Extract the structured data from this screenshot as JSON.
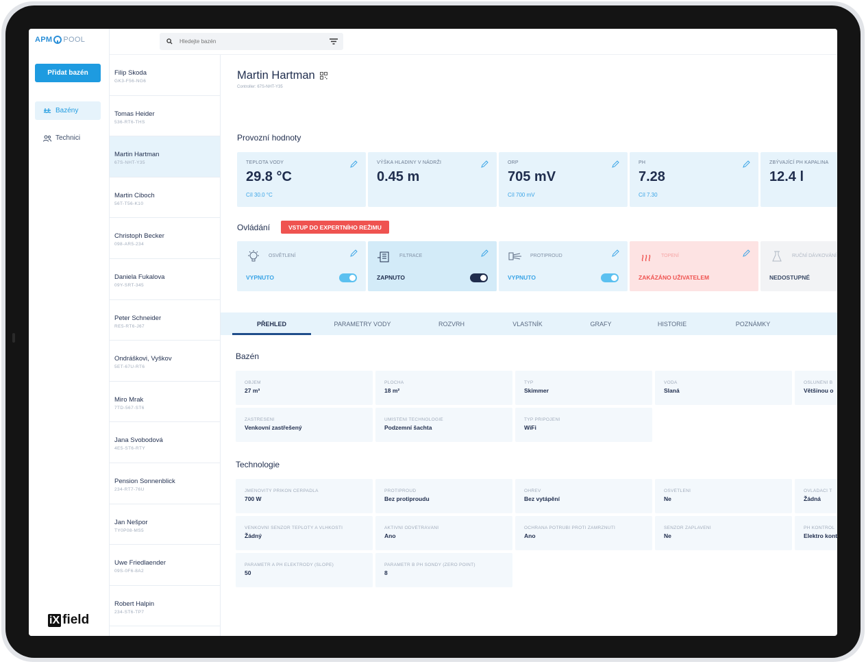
{
  "app": {
    "logo_apm": "APM",
    "logo_pool": "POOL",
    "add_pool_label": "Přidat bazén",
    "nav": [
      {
        "label": "Bazény",
        "icon": "pool-icon"
      },
      {
        "label": "Technici",
        "icon": "people-icon"
      }
    ],
    "vendor_logo_ix": "iX",
    "vendor_logo_rest": "field"
  },
  "search": {
    "placeholder": "Hledejte bazén"
  },
  "pools": [
    {
      "name": "Filip Skoda",
      "code": "GK3-F56-NG6"
    },
    {
      "name": "Tomas Heider",
      "code": "536-RT6-THS"
    },
    {
      "name": "Martin Hartman",
      "code": "67S-NHT-Y35"
    },
    {
      "name": "Martin Ciboch",
      "code": "56T-T56-K10"
    },
    {
      "name": "Christoph Becker",
      "code": "098-AR5-234"
    },
    {
      "name": "Daniela Fukalova",
      "code": "09Y-SRT-345"
    },
    {
      "name": "Peter Schneider",
      "code": "RE5-RT6-J67"
    },
    {
      "name": "Ondráškovi, Vyškov",
      "code": "5ET-67U-RT6"
    },
    {
      "name": "Miro Mrak",
      "code": "7TD-567-ST6"
    },
    {
      "name": "Jana Svobodová",
      "code": "4E5-ST6-RTY"
    },
    {
      "name": "Pension Sonnenblick",
      "code": "234-RT7-76U"
    },
    {
      "name": "Jan Nešpor",
      "code": "TY0P08-MS5"
    },
    {
      "name": "Uwe Friedlaender",
      "code": "09S-0F6-8A2"
    },
    {
      "name": "Robert Halpin",
      "code": "234-ST6-TP7"
    }
  ],
  "detail": {
    "title": "Martin Hartman",
    "controller": "Controller: 67S-NHT-Y35",
    "operating_title": "Provozní hodnoty",
    "controls_title": "Ovládání",
    "expert_button": "VSTUP DO EXPERTNÍHO REŽIMU",
    "values": [
      {
        "label": "TEPLOTA VODY",
        "value": "29.8 °C",
        "target": "Cíl 30.0 °C"
      },
      {
        "label": "VÝŠKA HLADINY V NÁDRŽI",
        "value": "0.45 m",
        "target": ""
      },
      {
        "label": "ORP",
        "value": "705 mV",
        "target": "Cíl 700 mV"
      },
      {
        "label": "PH",
        "value": "7.28",
        "target": "Cíl 7.30"
      },
      {
        "label": "ZBÝVAJÍCÍ PH KAPALINA",
        "value": "12.4 l",
        "target": ""
      }
    ],
    "controls": [
      {
        "name": "OSVĚTLENÍ",
        "state": "VYPNUTO",
        "icon": "light-bulb-icon"
      },
      {
        "name": "FILTRACE",
        "state": "ZAPNUTO",
        "icon": "filter-icon"
      },
      {
        "name": "PROTIPROUD",
        "state": "VYPNUTO",
        "icon": "counterflow-icon"
      },
      {
        "name": "TOPENÍ",
        "state": "ZAKÁZÁNO UŽIVATELEM",
        "icon": "heating-icon"
      },
      {
        "name": "RUČNÍ DÁVKOVÁNÍ",
        "state": "NEDOSTUPNÉ",
        "icon": "dosing-icon"
      }
    ],
    "tabs": [
      "PŘEHLED",
      "PARAMETRY VODY",
      "ROZVRH",
      "VLASTNÍK",
      "GRAFY",
      "HISTORIE",
      "POZNÁMKY"
    ],
    "pool_section": "Bazén",
    "pool_fields": [
      {
        "k": "OBJEM",
        "v": "27 m³"
      },
      {
        "k": "PLOCHA",
        "v": "18 m²"
      },
      {
        "k": "TYP",
        "v": "Skimmer"
      },
      {
        "k": "VODA",
        "v": "Slaná"
      },
      {
        "k": "OSLUNĚNÍ B",
        "v": "Většinou o"
      },
      {
        "k": "ZASTŘEŠENÍ",
        "v": "Venkovní zastřešený"
      },
      {
        "k": "UMÍSTĚNÍ TECHNOLOGIE",
        "v": "Podzemní šachta"
      },
      {
        "k": "TYP PŘIPOJENÍ",
        "v": "WiFi"
      }
    ],
    "tech_section": "Technologie",
    "tech_fields": [
      {
        "k": "JMENOVITÝ PŘÍKON ČERPADLA",
        "v": "700 W"
      },
      {
        "k": "PROTIPROUD",
        "v": "Bez protiproudu"
      },
      {
        "k": "OHŘEV",
        "v": "Bez vytápění"
      },
      {
        "k": "OSVĚTLENÍ",
        "v": "Ne"
      },
      {
        "k": "OVLÁDACÍ T",
        "v": "Žádná"
      },
      {
        "k": "VENKOVNÍ SENZOR TEPLOTY A VLHKOSTI",
        "v": "Žádný"
      },
      {
        "k": "AKTIVNÍ ODVĚTRÁVÁNÍ",
        "v": "Ano"
      },
      {
        "k": "OCHRANA POTRUBÍ PROTI ZAMRZNUTÍ",
        "v": "Ano"
      },
      {
        "k": "SENZOR ZAPLAVENÍ",
        "v": "Ne"
      },
      {
        "k": "PH KONTROL",
        "v": "Elektro kont"
      },
      {
        "k": "PARAMETR A PH ELEKTRODY (SLOPE)",
        "v": "50"
      },
      {
        "k": "PARAMETR B PH SONDY (ZERO POINT)",
        "v": "8"
      }
    ]
  }
}
